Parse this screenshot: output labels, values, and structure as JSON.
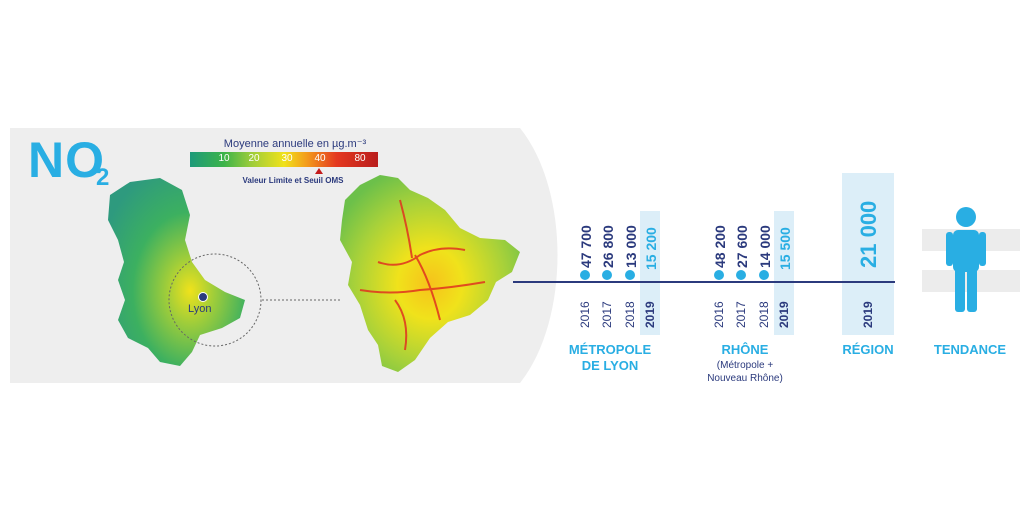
{
  "title": {
    "main": "NO",
    "sub": "2"
  },
  "legend": {
    "title": "Moyenne annuelle en µg.m⁻³",
    "ticks": [
      "10",
      "20",
      "30",
      "40",
      "80"
    ],
    "note": "Valeur Limite et Seuil OMS"
  },
  "map": {
    "city_label": "Lyon"
  },
  "groups": [
    {
      "label_line1": "MÉTROPOLE",
      "label_line2": "DE LYON",
      "entries": [
        {
          "year": "2016",
          "value": "47 700"
        },
        {
          "year": "2017",
          "value": "26 800"
        },
        {
          "year": "2018",
          "value": "13 000"
        },
        {
          "year": "2019",
          "value": "15 200"
        }
      ]
    },
    {
      "label_line1": "RHÔNE",
      "sub_line1": "(Métropole +",
      "sub_line2": "Nouveau Rhône)",
      "entries": [
        {
          "year": "2016",
          "value": "48 200"
        },
        {
          "year": "2017",
          "value": "27 600"
        },
        {
          "year": "2018",
          "value": "14 000"
        },
        {
          "year": "2019",
          "value": "15 500"
        }
      ]
    }
  ],
  "region": {
    "label": "RÉGION",
    "year": "2019",
    "value": "21 000"
  },
  "trend": {
    "label": "TENDANCE",
    "icon": "person-icon"
  },
  "colors": {
    "accent": "#29aee3",
    "dark": "#2b3a7d",
    "panel": "#eeeeee",
    "highlight": "#dceef8"
  }
}
